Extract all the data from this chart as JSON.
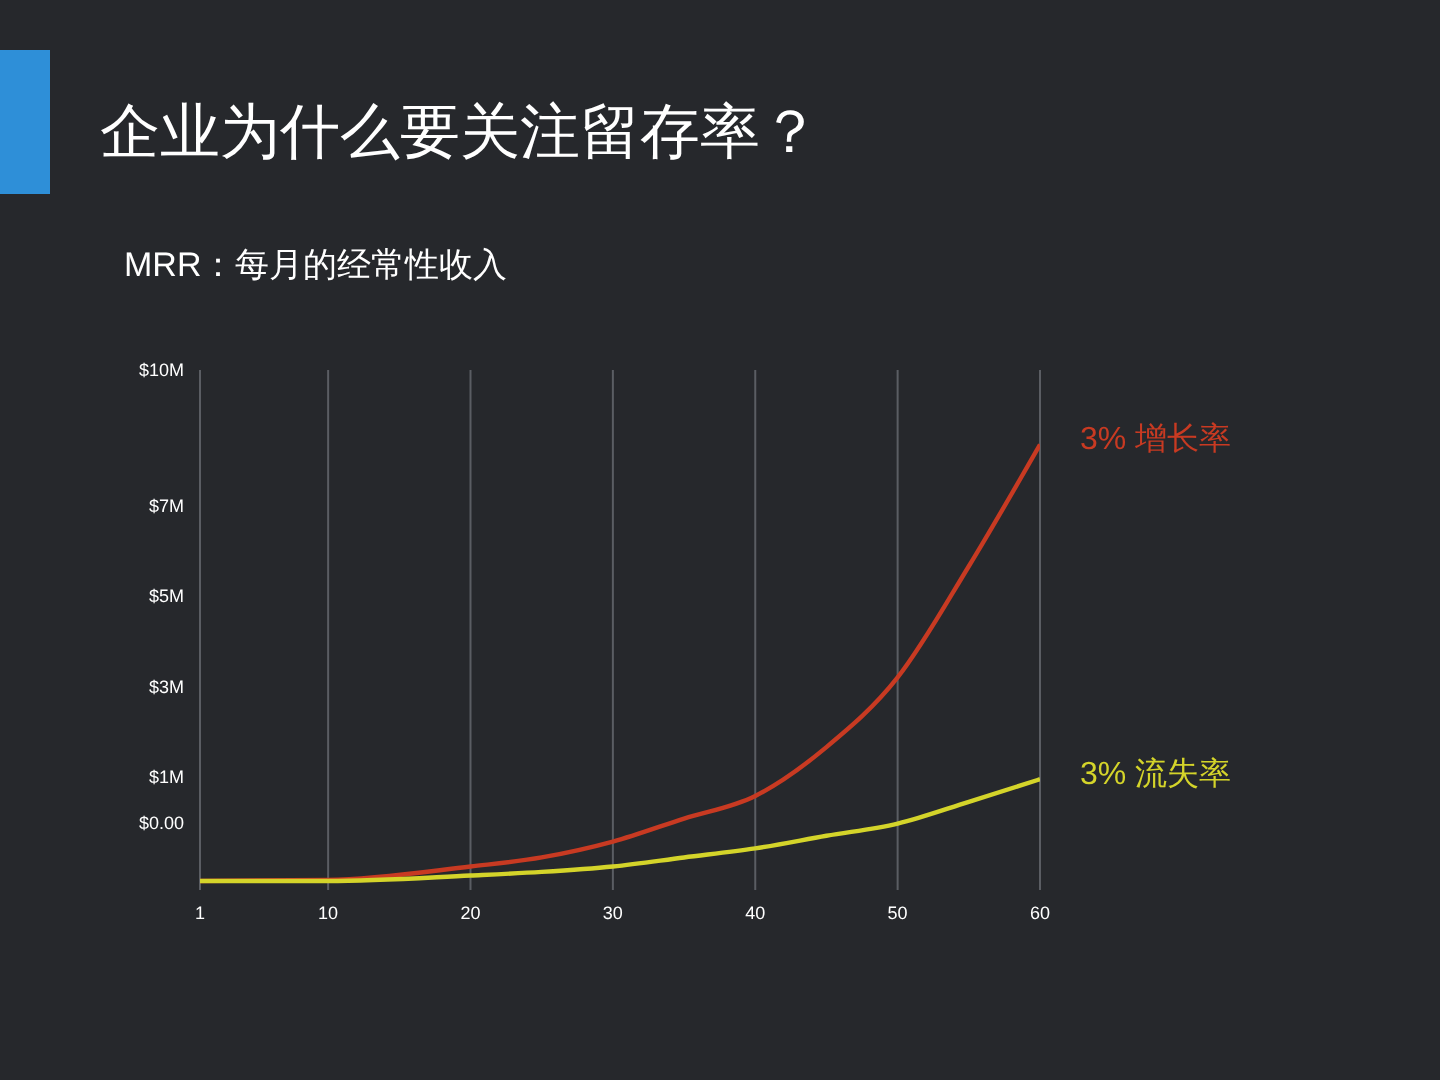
{
  "chart_data": {
    "type": "line",
    "title": "企业为什么要关注留存率？",
    "subtitle": "MRR：每月的经常性收入",
    "x": [
      1,
      10,
      20,
      25,
      30,
      35,
      40,
      45,
      50,
      55,
      60
    ],
    "series": [
      {
        "name": "3% 增长率",
        "color": "#c83a22",
        "values": [
          -1.3,
          -1.28,
          -0.98,
          -0.78,
          -0.43,
          0.08,
          0.58,
          1.66,
          3.2,
          5.66,
          8.35
        ]
      },
      {
        "name": "3% 流失率",
        "color": "#d4d42a",
        "values": [
          -1.3,
          -1.3,
          -1.18,
          -1.1,
          -0.98,
          -0.78,
          -0.58,
          -0.3,
          -0.03,
          0.45,
          0.95
        ]
      }
    ],
    "xlim": [
      1,
      60
    ],
    "xticks": [
      1,
      10,
      20,
      30,
      40,
      50,
      60
    ],
    "ylim": [
      -1.5,
      10
    ],
    "yticks": [
      {
        "value": 0,
        "label": "$0.00"
      },
      {
        "value": 1,
        "label": "$1M"
      },
      {
        "value": 3,
        "label": "$3M"
      },
      {
        "value": 5,
        "label": "$5M"
      },
      {
        "value": 7,
        "label": "$7M"
      },
      {
        "value": 10,
        "label": "$10M"
      }
    ],
    "grid": "x",
    "legend": false,
    "marker": "none",
    "line_style": "solid"
  }
}
